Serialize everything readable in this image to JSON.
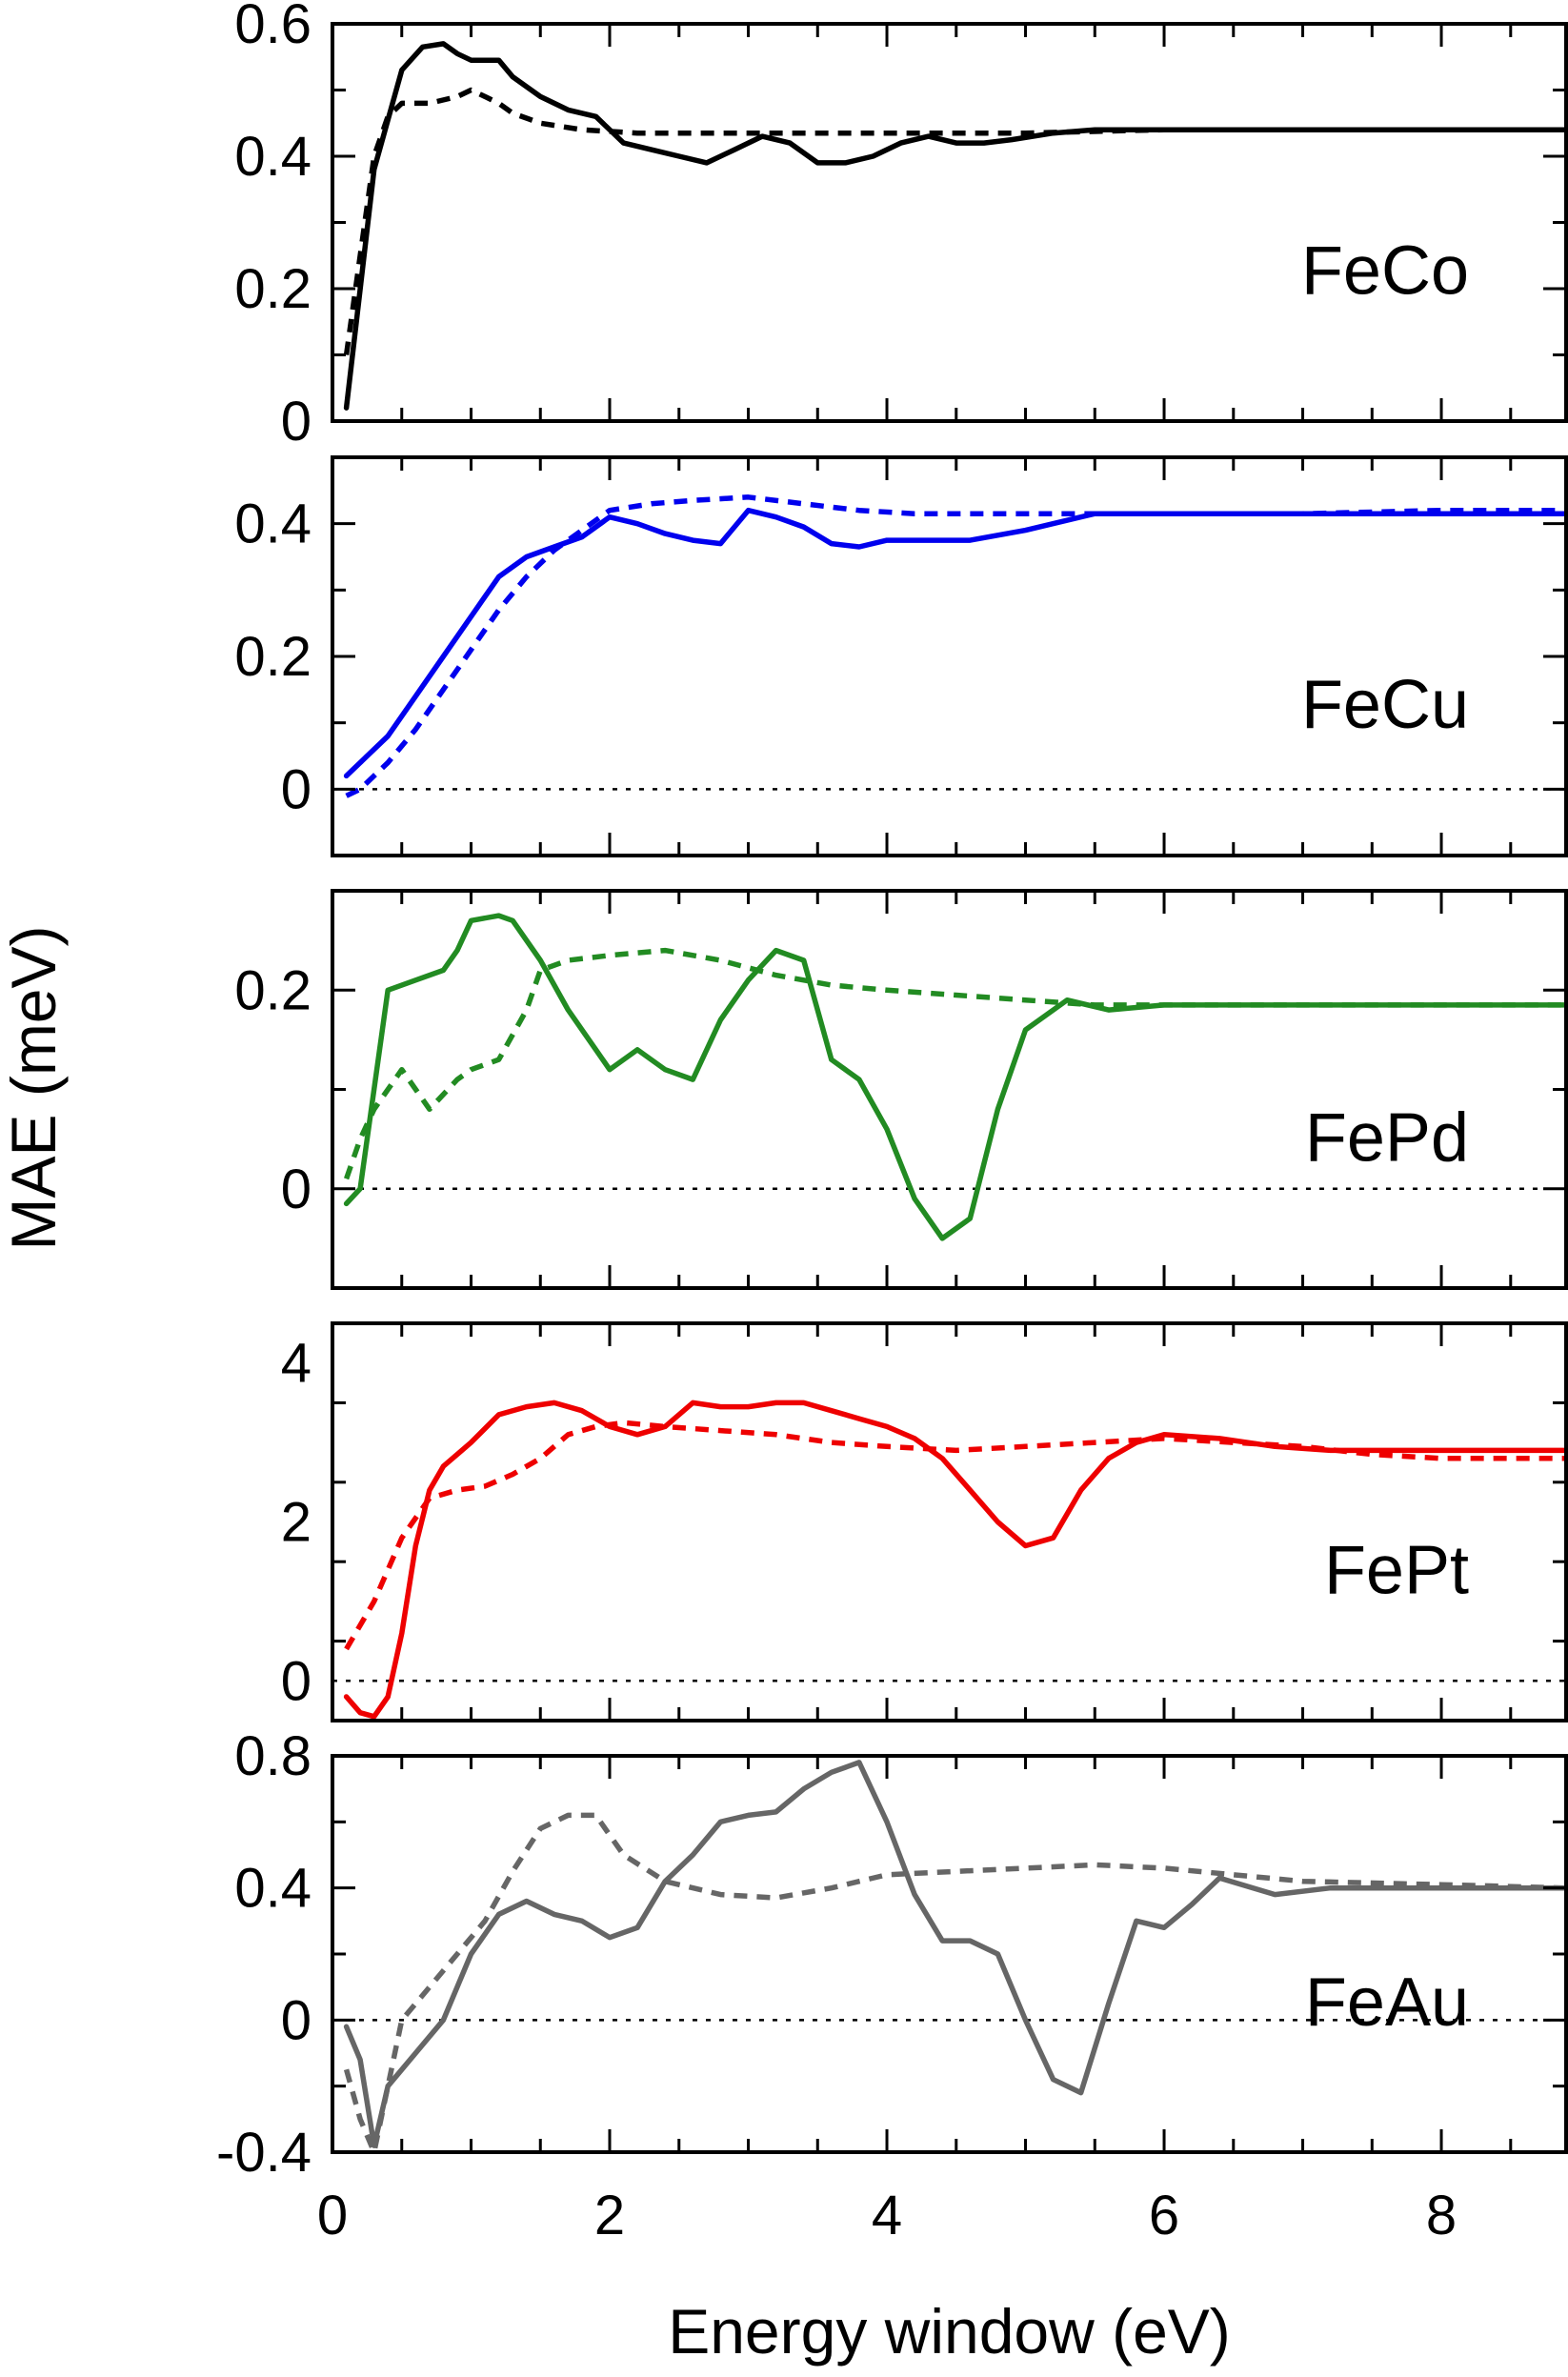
{
  "chart_data": {
    "type": "line",
    "layout": "stacked-panels",
    "xlabel": "Energy window (eV)",
    "ylabel": "MAE (meV)",
    "xlim": [
      0,
      8.9
    ],
    "xticks": [
      0,
      2,
      4,
      6,
      8
    ],
    "xtick_labels": [
      "0",
      "2",
      "4",
      "6",
      "8"
    ],
    "panels": [
      {
        "name": "FeCo",
        "color": "#000000",
        "ylim": [
          0,
          0.6
        ],
        "yticks": [
          0,
          0.2,
          0.4,
          0.6
        ],
        "ytick_labels": [
          "0",
          "0.2",
          "0.4",
          "0.6"
        ],
        "zero_line": false,
        "series": [
          {
            "style": "solid",
            "x": [
              0.1,
              0.3,
              0.5,
              0.65,
              0.8,
              0.9,
              1.0,
              1.2,
              1.3,
              1.5,
              1.7,
              1.9,
              2.1,
              2.3,
              2.5,
              2.7,
              2.9,
              3.1,
              3.3,
              3.5,
              3.7,
              3.9,
              4.1,
              4.3,
              4.5,
              4.7,
              4.9,
              5.2,
              5.5,
              6.0,
              7.0,
              8.0,
              8.9
            ],
            "y": [
              0.02,
              0.38,
              0.53,
              0.565,
              0.57,
              0.555,
              0.545,
              0.545,
              0.52,
              0.49,
              0.47,
              0.46,
              0.42,
              0.41,
              0.4,
              0.39,
              0.41,
              0.43,
              0.42,
              0.39,
              0.39,
              0.4,
              0.42,
              0.43,
              0.42,
              0.42,
              0.425,
              0.435,
              0.44,
              0.44,
              0.44,
              0.44,
              0.44
            ]
          },
          {
            "style": "dashed",
            "x": [
              0.1,
              0.2,
              0.3,
              0.4,
              0.5,
              0.7,
              0.9,
              1.0,
              1.1,
              1.2,
              1.3,
              1.5,
              1.8,
              2.2,
              2.6,
              3.0,
              4.0,
              5.0,
              6.0,
              7.0,
              8.0,
              8.9
            ],
            "y": [
              0.1,
              0.25,
              0.4,
              0.46,
              0.48,
              0.48,
              0.49,
              0.5,
              0.49,
              0.48,
              0.465,
              0.45,
              0.44,
              0.435,
              0.435,
              0.435,
              0.435,
              0.435,
              0.44,
              0.44,
              0.44,
              0.44
            ]
          }
        ]
      },
      {
        "name": "FeCu",
        "color": "#0000ee",
        "ylim": [
          -0.1,
          0.5
        ],
        "yticks": [
          0,
          0.2,
          0.4
        ],
        "ytick_labels": [
          "0",
          "0.2",
          "0.4"
        ],
        "zero_line": true,
        "series": [
          {
            "style": "solid",
            "x": [
              0.1,
              0.2,
              0.4,
              0.6,
              0.8,
              1.0,
              1.2,
              1.4,
              1.6,
              1.8,
              2.0,
              2.2,
              2.4,
              2.6,
              2.8,
              3.0,
              3.2,
              3.4,
              3.6,
              3.8,
              4.0,
              4.3,
              4.6,
              5.0,
              5.5,
              6.0,
              7.0,
              8.0,
              8.9
            ],
            "y": [
              0.02,
              0.04,
              0.08,
              0.14,
              0.2,
              0.26,
              0.32,
              0.35,
              0.365,
              0.38,
              0.41,
              0.4,
              0.385,
              0.375,
              0.37,
              0.42,
              0.41,
              0.395,
              0.37,
              0.365,
              0.375,
              0.375,
              0.375,
              0.39,
              0.415,
              0.415,
              0.415,
              0.415,
              0.415
            ]
          },
          {
            "style": "dashed",
            "x": [
              0.1,
              0.2,
              0.4,
              0.6,
              0.8,
              1.0,
              1.2,
              1.4,
              1.6,
              1.8,
              2.0,
              2.3,
              2.6,
              3.0,
              3.4,
              3.8,
              4.2,
              4.6,
              5.0,
              5.5,
              6.0,
              7.0,
              8.0,
              8.9
            ],
            "y": [
              -0.01,
              0.0,
              0.04,
              0.09,
              0.15,
              0.21,
              0.27,
              0.32,
              0.36,
              0.39,
              0.42,
              0.43,
              0.435,
              0.44,
              0.43,
              0.42,
              0.415,
              0.415,
              0.415,
              0.415,
              0.415,
              0.415,
              0.42,
              0.42
            ]
          }
        ]
      },
      {
        "name": "FePd",
        "color": "#228b22",
        "ylim": [
          -0.1,
          0.3
        ],
        "yticks": [
          0,
          0.2
        ],
        "ytick_labels": [
          "0",
          "0.2"
        ],
        "zero_line": true,
        "series": [
          {
            "style": "solid",
            "x": [
              0.1,
              0.2,
              0.4,
              0.6,
              0.8,
              0.9,
              1.0,
              1.2,
              1.3,
              1.5,
              1.7,
              1.9,
              2.0,
              2.2,
              2.4,
              2.6,
              2.8,
              3.0,
              3.2,
              3.4,
              3.6,
              3.8,
              4.0,
              4.2,
              4.4,
              4.6,
              4.8,
              5.0,
              5.3,
              5.6,
              6.0,
              7.0,
              8.0,
              8.9
            ],
            "y": [
              -0.015,
              0.0,
              0.2,
              0.21,
              0.22,
              0.24,
              0.27,
              0.275,
              0.27,
              0.23,
              0.18,
              0.14,
              0.12,
              0.14,
              0.12,
              0.11,
              0.17,
              0.21,
              0.24,
              0.23,
              0.13,
              0.11,
              0.06,
              -0.01,
              -0.05,
              -0.03,
              0.08,
              0.16,
              0.19,
              0.18,
              0.185,
              0.185,
              0.185,
              0.185
            ]
          },
          {
            "style": "dashed",
            "x": [
              0.1,
              0.2,
              0.3,
              0.5,
              0.7,
              0.9,
              1.0,
              1.2,
              1.4,
              1.5,
              1.7,
              2.0,
              2.4,
              2.8,
              3.2,
              3.6,
              4.0,
              4.5,
              5.0,
              5.5,
              6.0,
              7.0,
              8.0,
              8.9
            ],
            "y": [
              0.01,
              0.05,
              0.08,
              0.12,
              0.08,
              0.11,
              0.12,
              0.13,
              0.18,
              0.22,
              0.23,
              0.235,
              0.24,
              0.23,
              0.215,
              0.205,
              0.2,
              0.195,
              0.19,
              0.185,
              0.185,
              0.185,
              0.185,
              0.185
            ]
          }
        ]
      },
      {
        "name": "FePt",
        "color": "#ee0000",
        "ylim": [
          -0.5,
          4.5
        ],
        "yticks": [
          0,
          2,
          4
        ],
        "ytick_labels": [
          "0",
          "2",
          "4"
        ],
        "zero_line": true,
        "series": [
          {
            "style": "solid",
            "x": [
              0.1,
              0.2,
              0.3,
              0.4,
              0.5,
              0.6,
              0.7,
              0.8,
              1.0,
              1.2,
              1.4,
              1.6,
              1.8,
              2.0,
              2.2,
              2.4,
              2.6,
              2.8,
              3.0,
              3.2,
              3.4,
              3.6,
              3.8,
              4.0,
              4.2,
              4.4,
              4.6,
              4.8,
              5.0,
              5.2,
              5.4,
              5.6,
              5.8,
              6.0,
              6.4,
              6.8,
              7.2,
              7.6,
              8.0,
              8.9
            ],
            "y": [
              -0.2,
              -0.4,
              -0.45,
              -0.2,
              0.6,
              1.7,
              2.4,
              2.7,
              3.0,
              3.35,
              3.45,
              3.5,
              3.4,
              3.2,
              3.1,
              3.2,
              3.5,
              3.45,
              3.45,
              3.5,
              3.5,
              3.4,
              3.3,
              3.2,
              3.05,
              2.8,
              2.4,
              2.0,
              1.7,
              1.8,
              2.4,
              2.8,
              3.0,
              3.1,
              3.05,
              2.95,
              2.9,
              2.9,
              2.9,
              2.9
            ]
          },
          {
            "style": "dashed",
            "x": [
              0.1,
              0.3,
              0.5,
              0.7,
              0.9,
              1.1,
              1.3,
              1.5,
              1.7,
              1.9,
              2.1,
              2.4,
              2.8,
              3.2,
              3.6,
              4.0,
              4.5,
              5.0,
              5.5,
              6.0,
              6.5,
              7.0,
              7.5,
              8.0,
              8.9
            ],
            "y": [
              0.4,
              1.0,
              1.8,
              2.3,
              2.4,
              2.45,
              2.6,
              2.8,
              3.1,
              3.2,
              3.25,
              3.2,
              3.15,
              3.1,
              3.0,
              2.95,
              2.9,
              2.95,
              3.0,
              3.05,
              3.0,
              2.95,
              2.85,
              2.8,
              2.8
            ]
          }
        ]
      },
      {
        "name": "FeAu",
        "color": "#666666",
        "ylim": [
          -0.4,
          0.8
        ],
        "yticks": [
          -0.4,
          0,
          0.4,
          0.8
        ],
        "ytick_labels": [
          "-0.4",
          "0",
          "0.4",
          "0.8"
        ],
        "zero_line": true,
        "series": [
          {
            "style": "solid",
            "x": [
              0.1,
              0.2,
              0.3,
              0.4,
              0.6,
              0.8,
              1.0,
              1.2,
              1.4,
              1.6,
              1.8,
              2.0,
              2.2,
              2.4,
              2.6,
              2.8,
              3.0,
              3.2,
              3.4,
              3.6,
              3.8,
              4.0,
              4.2,
              4.4,
              4.6,
              4.8,
              5.0,
              5.2,
              5.4,
              5.6,
              5.8,
              6.0,
              6.2,
              6.4,
              6.8,
              7.2,
              8.0,
              8.9
            ],
            "y": [
              -0.02,
              -0.12,
              -0.38,
              -0.2,
              -0.1,
              0.0,
              0.2,
              0.32,
              0.36,
              0.32,
              0.3,
              0.25,
              0.28,
              0.42,
              0.5,
              0.6,
              0.62,
              0.63,
              0.7,
              0.75,
              0.78,
              0.6,
              0.38,
              0.24,
              0.24,
              0.2,
              0.0,
              -0.18,
              -0.22,
              0.05,
              0.3,
              0.28,
              0.35,
              0.43,
              0.38,
              0.4,
              0.4,
              0.4
            ]
          },
          {
            "style": "dashed",
            "x": [
              0.1,
              0.2,
              0.3,
              0.4,
              0.5,
              0.7,
              0.9,
              1.1,
              1.3,
              1.5,
              1.7,
              1.9,
              2.1,
              2.4,
              2.8,
              3.2,
              3.6,
              4.0,
              4.5,
              5.0,
              5.5,
              6.0,
              6.5,
              7.0,
              8.0,
              8.9
            ],
            "y": [
              -0.15,
              -0.3,
              -0.4,
              -0.2,
              0.0,
              0.1,
              0.2,
              0.3,
              0.45,
              0.58,
              0.62,
              0.62,
              0.5,
              0.42,
              0.38,
              0.37,
              0.4,
              0.44,
              0.45,
              0.46,
              0.47,
              0.46,
              0.44,
              0.42,
              0.41,
              0.4
            ]
          }
        ]
      }
    ]
  }
}
